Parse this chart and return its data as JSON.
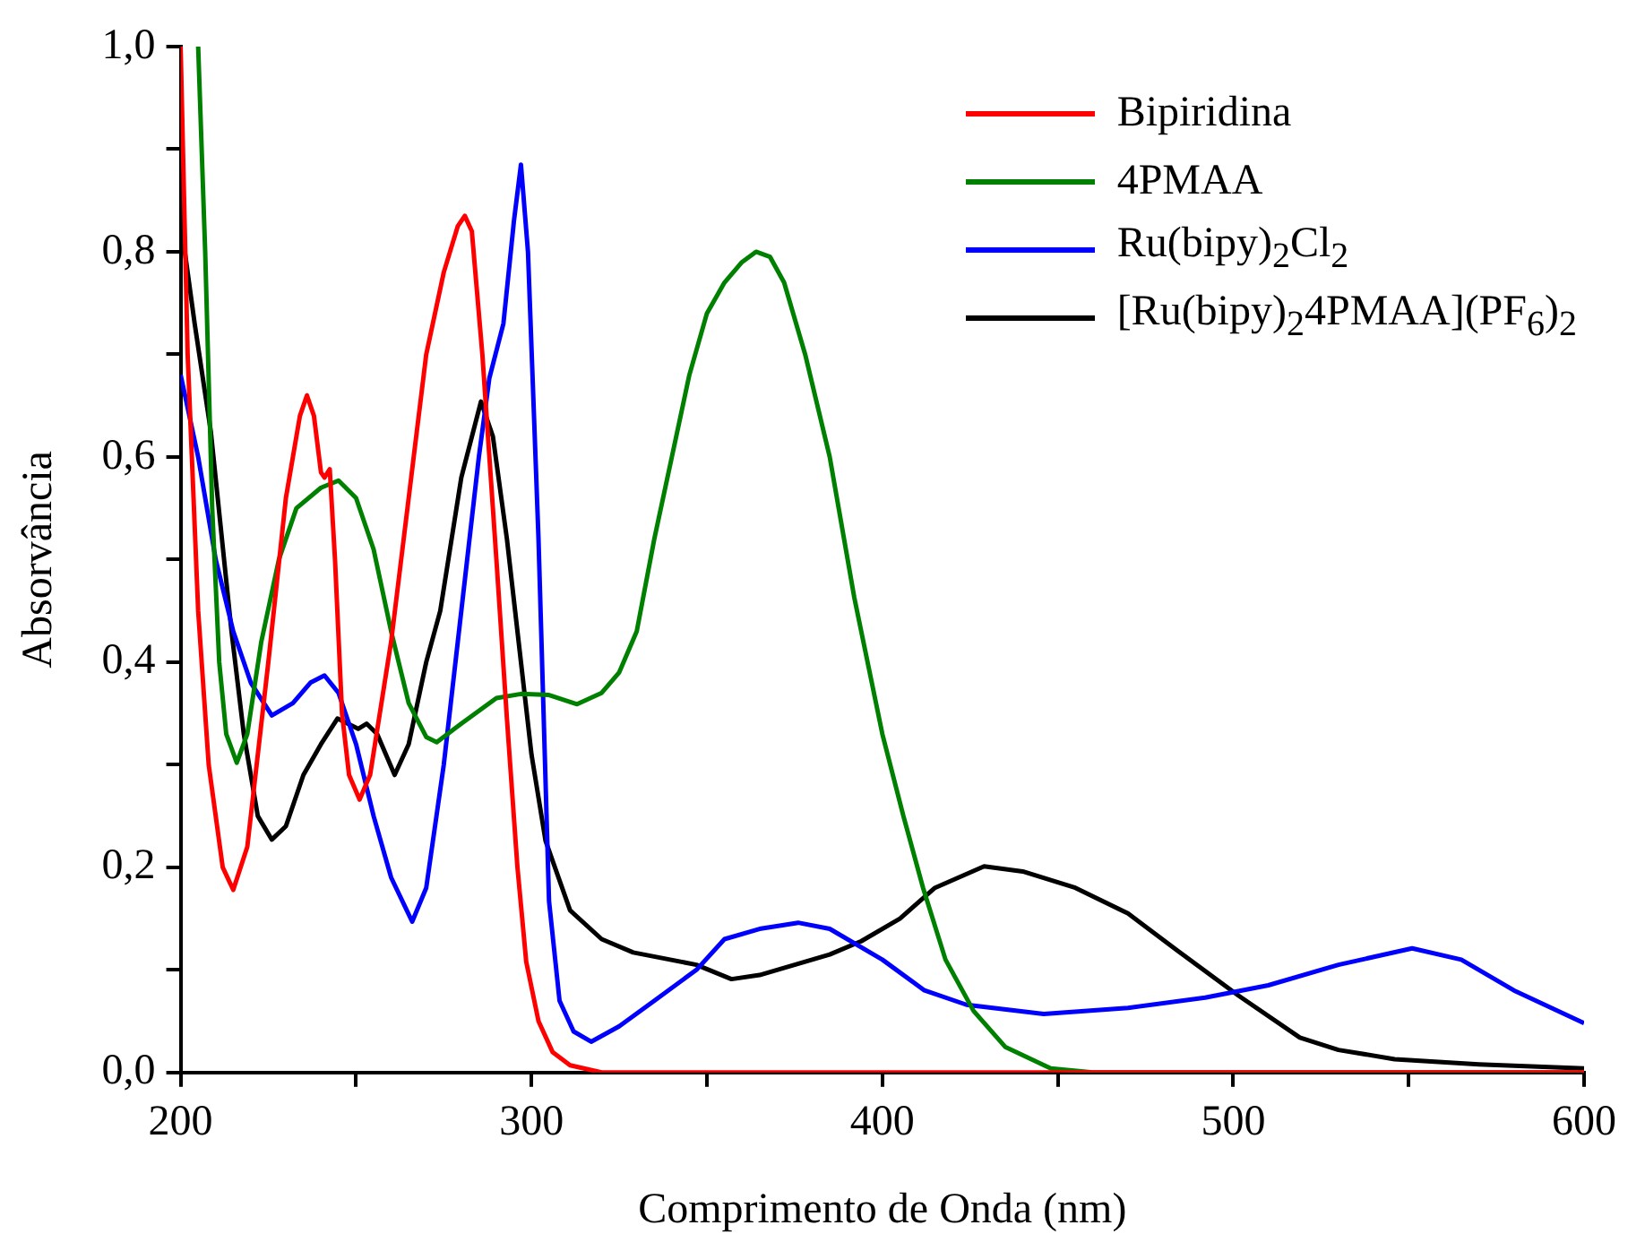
{
  "chart_data": {
    "type": "line",
    "xlabel": "Comprimento de Onda (nm)",
    "ylabel": "Absorvância",
    "xlim": [
      200,
      600
    ],
    "xticks": [
      200,
      {
        "value": 250,
        "label": null
      },
      300,
      {
        "value": 350,
        "label": null
      },
      400,
      {
        "value": 450,
        "label": null
      },
      500,
      {
        "value": 550,
        "label": null
      },
      600
    ],
    "ylim": [
      0,
      1
    ],
    "yticks": [
      {
        "value": 0,
        "label": "0,0"
      },
      {
        "value": 0.1,
        "label": null
      },
      {
        "value": 0.2,
        "label": "0,2"
      },
      {
        "value": 0.3,
        "label": null
      },
      {
        "value": 0.4,
        "label": "0,4"
      },
      {
        "value": 0.5,
        "label": null
      },
      {
        "value": 0.6,
        "label": "0,6"
      },
      {
        "value": 0.7,
        "label": null
      },
      {
        "value": 0.8,
        "label": "0,8"
      },
      {
        "value": 0.9,
        "label": null
      },
      {
        "value": 1,
        "label": "1,0"
      }
    ],
    "grid": false,
    "legend": "top right",
    "marker": "none",
    "line_style": "solid",
    "series": [
      {
        "name": "Bipiridina",
        "color": "#ff0000",
        "x": [
          200,
          202,
          205,
          208,
          212,
          215,
          219,
          225,
          230,
          234,
          236,
          238,
          240,
          241,
          242.5,
          244,
          246,
          248,
          251,
          254,
          260,
          265,
          270,
          275,
          279,
          281,
          283,
          286,
          290,
          293,
          296,
          298.5,
          302,
          306,
          311,
          320,
          400,
          600
        ],
        "values": [
          1.0,
          0.7,
          0.45,
          0.3,
          0.2,
          0.178,
          0.22,
          0.4,
          0.56,
          0.64,
          0.66,
          0.64,
          0.585,
          0.58,
          0.588,
          0.5,
          0.35,
          0.29,
          0.266,
          0.29,
          0.42,
          0.56,
          0.7,
          0.78,
          0.825,
          0.835,
          0.82,
          0.7,
          0.5,
          0.345,
          0.2,
          0.108,
          0.05,
          0.02,
          0.007,
          0,
          0,
          0
        ]
      },
      {
        "name": "4PMAA",
        "color": "#008000",
        "x": [
          205,
          207,
          209,
          211,
          213,
          216,
          219,
          223,
          228,
          233,
          240,
          245,
          250,
          255,
          260,
          265,
          270,
          273,
          280,
          290,
          297,
          305,
          313,
          320,
          325,
          330,
          335,
          340,
          345,
          350,
          355,
          360,
          364,
          368,
          372,
          378,
          385,
          392,
          400,
          406,
          411.6,
          418,
          426,
          435,
          448,
          460,
          600
        ],
        "values": [
          1.0,
          0.8,
          0.55,
          0.4,
          0.33,
          0.302,
          0.33,
          0.42,
          0.5,
          0.55,
          0.57,
          0.577,
          0.56,
          0.51,
          0.43,
          0.36,
          0.327,
          0.322,
          0.34,
          0.365,
          0.369,
          0.368,
          0.359,
          0.37,
          0.39,
          0.43,
          0.52,
          0.6,
          0.68,
          0.74,
          0.77,
          0.79,
          0.8,
          0.795,
          0.77,
          0.7,
          0.6,
          0.463,
          0.33,
          0.25,
          0.18,
          0.11,
          0.06,
          0.025,
          0.004,
          0,
          0
        ]
      },
      {
        "name": "Ru(bipy)$_{2}$Cl$_{2}$",
        "color": "#0000ff",
        "x": [
          200,
          205,
          210,
          215,
          220,
          226,
          232,
          237,
          241,
          245,
          250,
          255,
          260,
          266,
          270,
          275,
          280,
          285,
          288,
          292,
          295,
          297,
          299,
          302,
          305,
          308,
          312,
          317,
          325,
          335,
          347,
          355,
          365,
          376,
          385,
          400,
          412,
          424,
          446,
          470,
          492,
          510,
          530,
          551,
          565,
          580,
          600
        ],
        "values": [
          0.68,
          0.6,
          0.5,
          0.43,
          0.38,
          0.348,
          0.36,
          0.38,
          0.387,
          0.37,
          0.32,
          0.25,
          0.19,
          0.147,
          0.18,
          0.3,
          0.45,
          0.6,
          0.677,
          0.73,
          0.83,
          0.885,
          0.8,
          0.52,
          0.167,
          0.07,
          0.04,
          0.03,
          0.045,
          0.07,
          0.1,
          0.13,
          0.14,
          0.146,
          0.14,
          0.11,
          0.08,
          0.066,
          0.057,
          0.063,
          0.073,
          0.085,
          0.105,
          0.121,
          0.11,
          0.08,
          0.048
        ]
      },
      {
        "name": "[Ru(bipy)$_{2}$4PMAA](PF$_{6}$)$_{2}$",
        "color": "#000000",
        "x": [
          200,
          204,
          208.6,
          214.5,
          218,
          222,
          226,
          230,
          235,
          240,
          244.7,
          250.6,
          253,
          256,
          261,
          265,
          270,
          274,
          280,
          285.6,
          289,
          293,
          297,
          300,
          304,
          311,
          320,
          329,
          347,
          357,
          365,
          375,
          385,
          394,
          405,
          415,
          429,
          440,
          455,
          470,
          484,
          501.5,
          519,
          530,
          546,
          570,
          600
        ],
        "values": [
          0.83,
          0.73,
          0.625,
          0.43,
          0.33,
          0.25,
          0.227,
          0.24,
          0.29,
          0.32,
          0.345,
          0.335,
          0.34,
          0.33,
          0.29,
          0.32,
          0.4,
          0.45,
          0.58,
          0.654,
          0.62,
          0.52,
          0.4,
          0.31,
          0.226,
          0.158,
          0.13,
          0.117,
          0.105,
          0.091,
          0.095,
          0.105,
          0.115,
          0.128,
          0.15,
          0.18,
          0.201,
          0.196,
          0.18,
          0.155,
          0.119,
          0.075,
          0.034,
          0.022,
          0.013,
          0.008,
          0.004
        ]
      }
    ]
  }
}
